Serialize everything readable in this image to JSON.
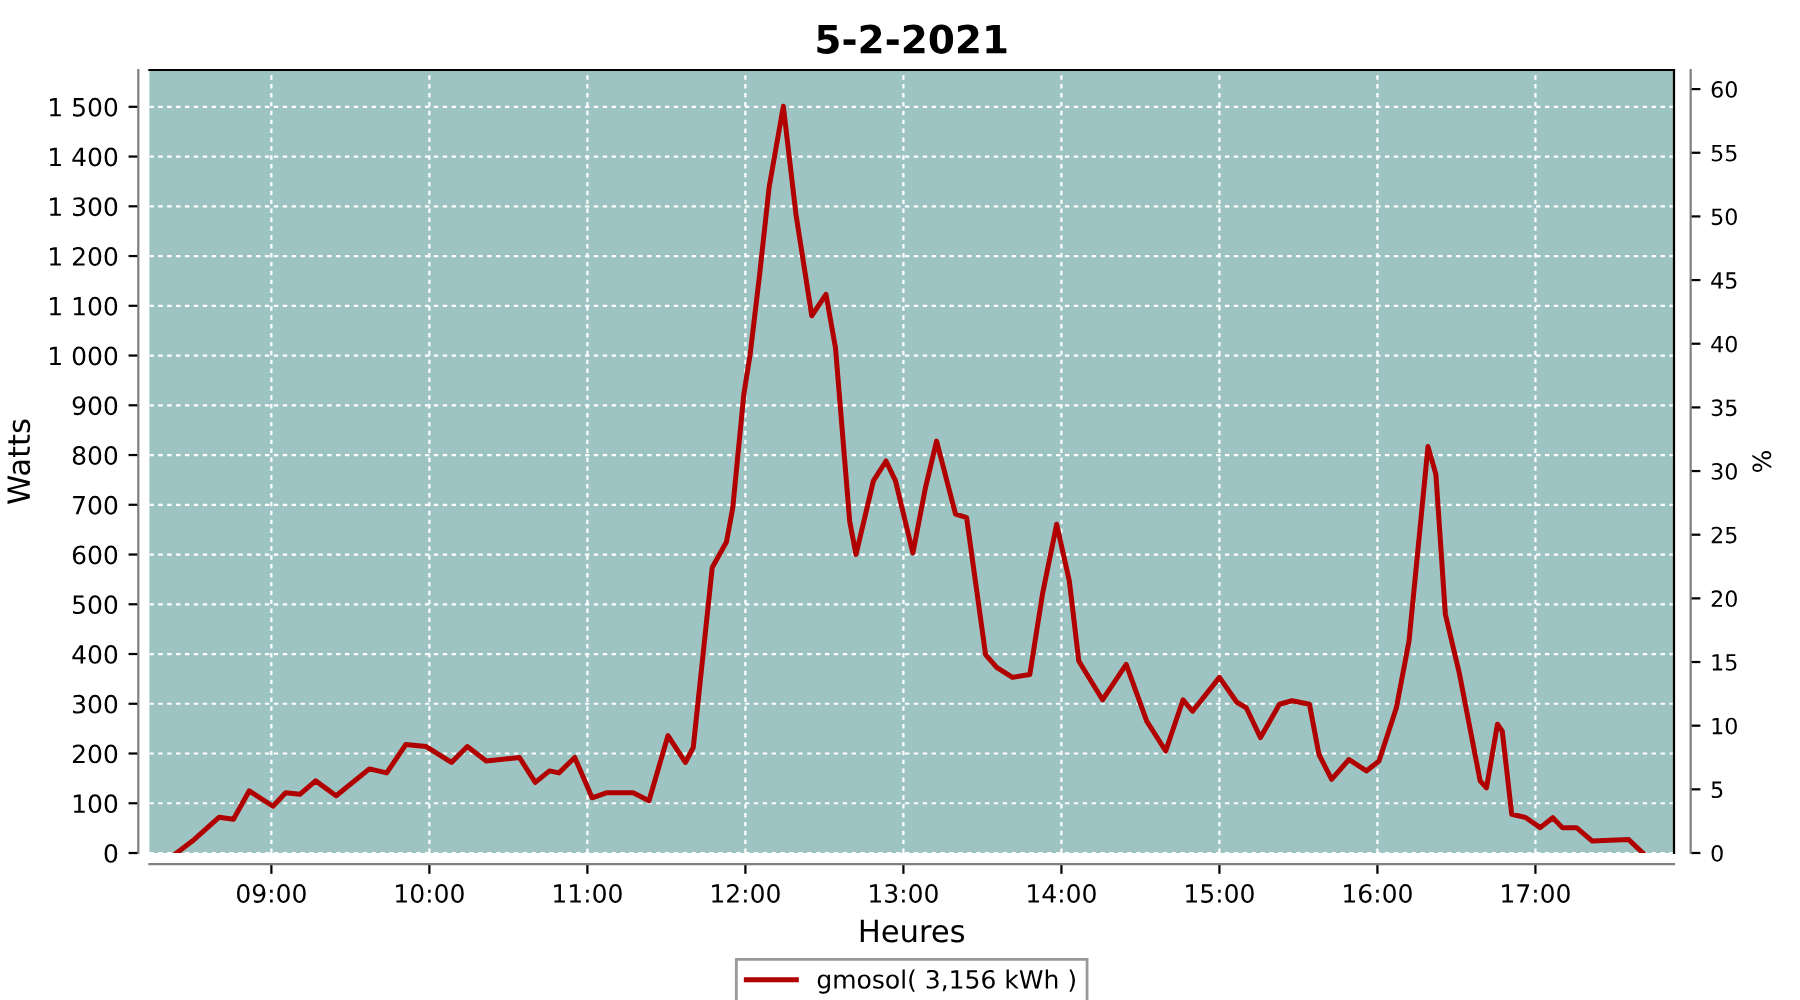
{
  "chart_data": {
    "type": "line",
    "title": "5-2-2021",
    "xlabel": "Heures",
    "ylabel": "Watts",
    "y2label": "%",
    "x": [
      8.4,
      8.5,
      8.67,
      8.76,
      8.86,
      9.01,
      9.09,
      9.18,
      9.28,
      9.41,
      9.62,
      9.73,
      9.85,
      9.98,
      10.14,
      10.24,
      10.36,
      10.57,
      10.67,
      10.76,
      10.82,
      10.92,
      11.03,
      11.12,
      11.29,
      11.39,
      11.51,
      11.62,
      11.67,
      11.79,
      11.88,
      11.92,
      11.99,
      12.03,
      12.09,
      12.15,
      12.24,
      12.32,
      12.42,
      12.51,
      12.57,
      12.66,
      12.7,
      12.81,
      12.89,
      12.95,
      13.06,
      13.14,
      13.21,
      13.33,
      13.4,
      13.52,
      13.59,
      13.69,
      13.8,
      13.88,
      13.97,
      14.05,
      14.11,
      14.26,
      14.41,
      14.54,
      14.66,
      14.77,
      14.83,
      15.0,
      15.11,
      15.17,
      15.26,
      15.38,
      15.46,
      15.57,
      15.63,
      15.71,
      15.82,
      15.93,
      16.01,
      16.12,
      16.2,
      16.27,
      16.32,
      16.37,
      16.43,
      16.52,
      16.65,
      16.69,
      16.76,
      16.79,
      16.85,
      16.94,
      17.03,
      17.11,
      17.17,
      17.26,
      17.36,
      17.59,
      17.68
    ],
    "series": [
      {
        "name": "gmosol( 3,156 kWh )",
        "color": "#b00000",
        "values": [
          0,
          24,
          72,
          68,
          125,
          94,
          121,
          118,
          145,
          115,
          169,
          161,
          218,
          214,
          182,
          214,
          185,
          192,
          142,
          165,
          161,
          192,
          111,
          121,
          121,
          105,
          236,
          182,
          212,
          574,
          625,
          694,
          922,
          1002,
          1163,
          1338,
          1501,
          1284,
          1080,
          1123,
          1016,
          667,
          600,
          748,
          788,
          748,
          603,
          735,
          828,
          681,
          674,
          399,
          373,
          353,
          359,
          520,
          661,
          547,
          386,
          308,
          379,
          265,
          205,
          308,
          285,
          353,
          303,
          292,
          232,
          299,
          306,
          299,
          198,
          148,
          188,
          165,
          185,
          292,
          426,
          654,
          817,
          761,
          480,
          359,
          145,
          131,
          259,
          245,
          78,
          71,
          51,
          71,
          51,
          51,
          24,
          27,
          0
        ]
      }
    ],
    "xlim": [
      8.228,
      17.877
    ],
    "xticks": [
      {
        "value": 9,
        "label": "09:00"
      },
      {
        "value": 10,
        "label": "10:00"
      },
      {
        "value": 11,
        "label": "11:00"
      },
      {
        "value": 12,
        "label": "12:00"
      },
      {
        "value": 13,
        "label": "13:00"
      },
      {
        "value": 14,
        "label": "14:00"
      },
      {
        "value": 15,
        "label": "15:00"
      },
      {
        "value": 16,
        "label": "16:00"
      },
      {
        "value": 17,
        "label": "17:00"
      }
    ],
    "ylim": [
      0,
      1574
    ],
    "yticks": [
      0,
      100,
      200,
      300,
      400,
      500,
      600,
      700,
      800,
      900,
      {
        "value": 1000,
        "label": "1 000"
      },
      {
        "value": 1100,
        "label": "1 100"
      },
      {
        "value": 1200,
        "label": "1 200"
      },
      {
        "value": 1300,
        "label": "1 300"
      },
      {
        "value": 1400,
        "label": "1 400"
      },
      {
        "value": 1500,
        "label": "1 500"
      }
    ],
    "y2lim": [
      0,
      61.5
    ],
    "y2ticks": [
      0,
      5,
      10,
      15,
      20,
      25,
      30,
      35,
      40,
      45,
      50,
      55,
      60
    ],
    "grid": true,
    "legend": "bottom",
    "marker": "none",
    "line_style": "solid"
  }
}
